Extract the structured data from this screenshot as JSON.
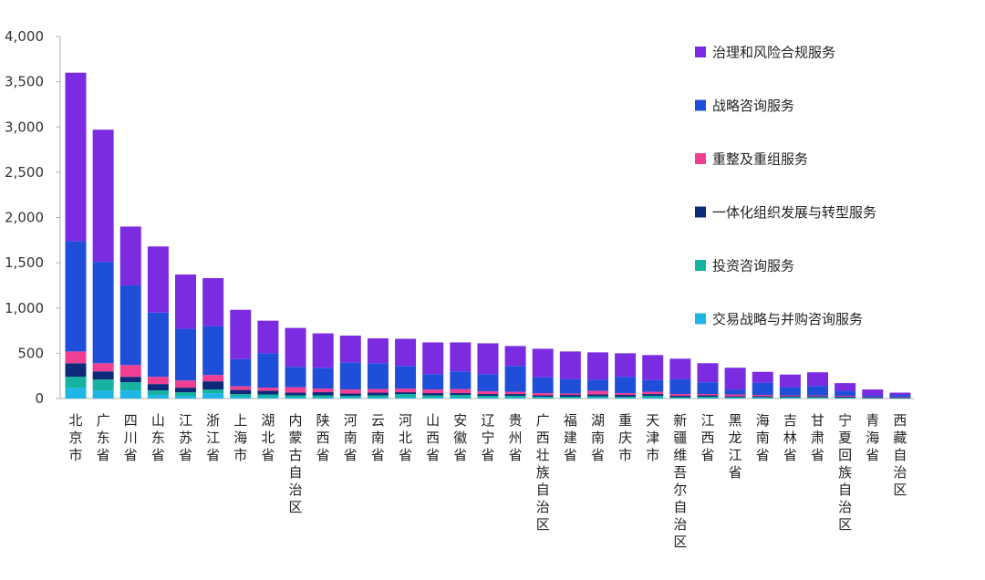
{
  "chart_data": {
    "type": "bar",
    "stacked": true,
    "grid": false,
    "legend_position": "right",
    "ylim": [
      0,
      4000
    ],
    "yticks": [
      0,
      500,
      1000,
      1500,
      2000,
      2500,
      3000,
      3500,
      4000
    ],
    "ytick_labels": [
      "0",
      "500",
      "1,000",
      "1,500",
      "2,000",
      "2,500",
      "3,000",
      "3,500",
      "4,000"
    ],
    "categories": [
      "北京市",
      "广东省",
      "四川省",
      "山东省",
      "江苏省",
      "浙江省",
      "上海市",
      "湖北省",
      "内蒙古自治区",
      "陕西省",
      "河南省",
      "云南省",
      "河北省",
      "山西省",
      "安徽省",
      "辽宁省",
      "贵州省",
      "广西壮族自治区",
      "福建省",
      "湖南省",
      "重庆市",
      "天津市",
      "新疆维吾尔自治区",
      "江西省",
      "黑龙江省",
      "海南省",
      "吉林省",
      "甘肃省",
      "宁夏回族自治区",
      "青海省",
      "西藏自治区"
    ],
    "series": [
      {
        "name": "交易战略与并购咨询服务",
        "color": "#1fb6e6",
        "values": [
          120,
          90,
          90,
          40,
          30,
          60,
          20,
          15,
          10,
          10,
          10,
          10,
          15,
          10,
          10,
          10,
          10,
          5,
          5,
          10,
          5,
          10,
          5,
          5,
          5,
          5,
          5,
          5,
          5,
          0,
          0
        ]
      },
      {
        "name": "投资咨询服务",
        "color": "#17b3a0",
        "values": [
          120,
          120,
          90,
          50,
          40,
          40,
          30,
          30,
          25,
          25,
          20,
          25,
          35,
          25,
          30,
          20,
          20,
          15,
          15,
          15,
          15,
          20,
          10,
          15,
          10,
          10,
          10,
          10,
          5,
          5,
          5
        ]
      },
      {
        "name": "一体化组织发展与转型服务",
        "color": "#0d2a7a",
        "values": [
          150,
          90,
          60,
          70,
          50,
          90,
          45,
          40,
          30,
          35,
          25,
          30,
          20,
          25,
          20,
          20,
          20,
          15,
          20,
          20,
          20,
          20,
          15,
          15,
          10,
          10,
          10,
          10,
          10,
          5,
          5
        ]
      },
      {
        "name": "重整及重组服务",
        "color": "#f03f93",
        "values": [
          130,
          90,
          130,
          80,
          80,
          70,
          40,
          35,
          60,
          40,
          45,
          40,
          40,
          40,
          45,
          30,
          25,
          25,
          15,
          40,
          20,
          25,
          20,
          15,
          20,
          15,
          10,
          10,
          10,
          5,
          5
        ]
      },
      {
        "name": "战略咨询服务",
        "color": "#1f4fd8",
        "values": [
          1220,
          1120,
          880,
          710,
          570,
          540,
          300,
          380,
          225,
          230,
          300,
          285,
          250,
          170,
          195,
          190,
          285,
          175,
          160,
          125,
          180,
          130,
          165,
          130,
          55,
          135,
          90,
          105,
          55,
          20,
          25
        ]
      },
      {
        "name": "治理和风险合规服务",
        "color": "#7b2be0",
        "values": [
          1860,
          1460,
          650,
          730,
          600,
          530,
          545,
          360,
          430,
          380,
          295,
          275,
          300,
          350,
          320,
          340,
          220,
          315,
          305,
          300,
          260,
          275,
          225,
          210,
          240,
          120,
          140,
          150,
          85,
          65,
          25
        ]
      }
    ]
  }
}
